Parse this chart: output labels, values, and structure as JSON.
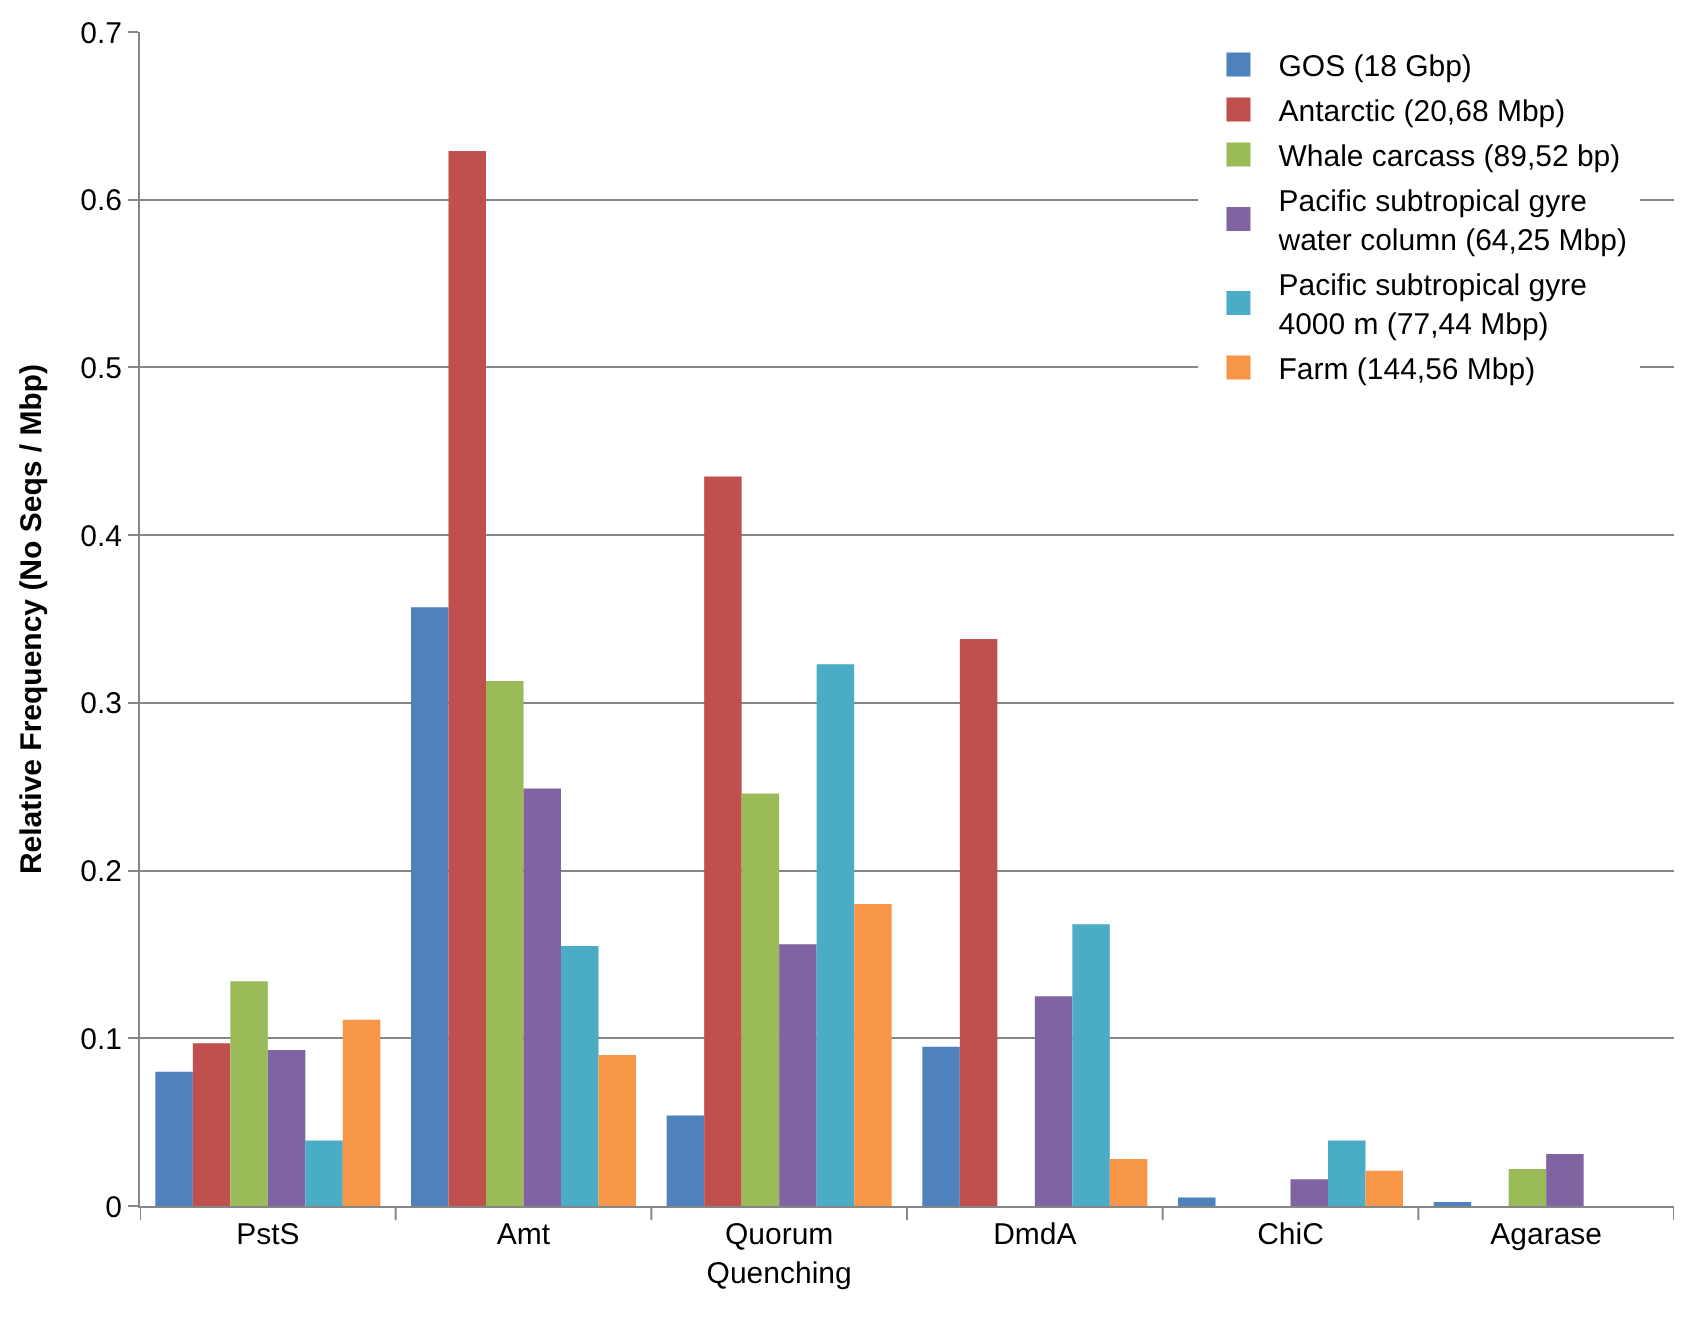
{
  "chart_data": {
    "type": "bar",
    "ylabel": "Relative Frequency (No Seqs / Mbp)",
    "categories": [
      "PstS",
      "Amt",
      "Quorum Quenching",
      "DmdA",
      "ChiC",
      "Agarase"
    ],
    "series": [
      {
        "name": "GOS (18 Gbp)",
        "color": "#4f81bd",
        "values": [
          0.08,
          0.357,
          0.054,
          0.095,
          0.005,
          0.002
        ]
      },
      {
        "name": "Antarctic (20,68 Mbp)",
        "color": "#c0504d",
        "values": [
          0.097,
          0.629,
          0.435,
          0.338,
          0,
          0
        ]
      },
      {
        "name": "Whale carcass (89,52 bp)",
        "color": "#9bbb59",
        "values": [
          0.134,
          0.313,
          0.246,
          0,
          0,
          0.022
        ]
      },
      {
        "name": "Pacific subtropical gyre water column (64,25 Mbp)",
        "color": "#8064a2",
        "values": [
          0.093,
          0.249,
          0.156,
          0.125,
          0.016,
          0.031
        ]
      },
      {
        "name": "Pacific subtropical gyre 4000 m (77,44 Mbp)",
        "color": "#4bacc6",
        "values": [
          0.039,
          0.155,
          0.323,
          0.168,
          0.039,
          0
        ]
      },
      {
        "name": "Farm (144,56 Mbp)",
        "color": "#f79646",
        "values": [
          0.111,
          0.09,
          0.18,
          0.028,
          0.021,
          0
        ]
      }
    ],
    "ylim": [
      0,
      0.7
    ],
    "yticks": [
      0,
      0.1,
      0.2,
      0.3,
      0.4,
      0.5,
      0.6,
      0.7
    ],
    "grid": "y",
    "legend": "top right"
  }
}
